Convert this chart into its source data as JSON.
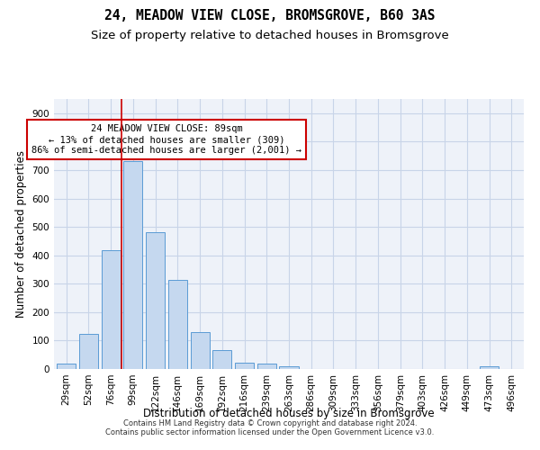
{
  "title": "24, MEADOW VIEW CLOSE, BROMSGROVE, B60 3AS",
  "subtitle": "Size of property relative to detached houses in Bromsgrove",
  "xlabel": "Distribution of detached houses by size in Bromsgrove",
  "ylabel": "Number of detached properties",
  "footer_line1": "Contains HM Land Registry data © Crown copyright and database right 2024.",
  "footer_line2": "Contains public sector information licensed under the Open Government Licence v3.0.",
  "categories": [
    "29sqm",
    "52sqm",
    "76sqm",
    "99sqm",
    "122sqm",
    "146sqm",
    "169sqm",
    "192sqm",
    "216sqm",
    "239sqm",
    "263sqm",
    "286sqm",
    "309sqm",
    "333sqm",
    "356sqm",
    "379sqm",
    "403sqm",
    "426sqm",
    "449sqm",
    "473sqm",
    "496sqm"
  ],
  "values": [
    18,
    122,
    418,
    733,
    480,
    315,
    130,
    65,
    22,
    20,
    10,
    0,
    0,
    0,
    0,
    0,
    0,
    0,
    0,
    8,
    0
  ],
  "bar_color": "#c5d8ef",
  "bar_edge_color": "#5b9bd5",
  "grid_color": "#c8d4e8",
  "annotation_text": "24 MEADOW VIEW CLOSE: 89sqm\n← 13% of detached houses are smaller (309)\n86% of semi-detached houses are larger (2,001) →",
  "annotation_box_color": "#ffffff",
  "annotation_box_edge_color": "#cc0000",
  "vline_x_index": 2.5,
  "vline_color": "#cc0000",
  "ylim": [
    0,
    950
  ],
  "yticks": [
    0,
    100,
    200,
    300,
    400,
    500,
    600,
    700,
    800,
    900
  ],
  "background_color": "#eef2f9",
  "title_fontsize": 10.5,
  "subtitle_fontsize": 9.5,
  "axis_label_fontsize": 8.5,
  "tick_fontsize": 7.5,
  "annotation_fontsize": 7.5,
  "footer_fontsize": 6
}
